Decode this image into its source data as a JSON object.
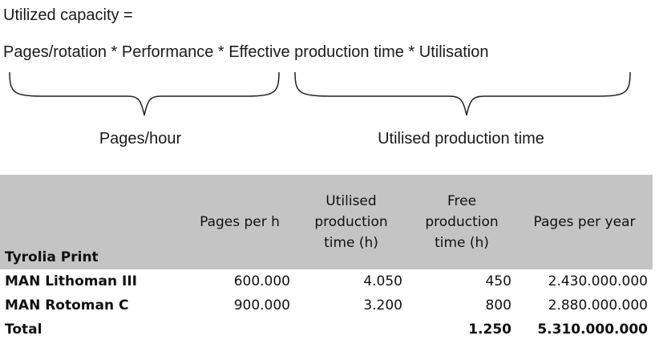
{
  "formula": {
    "title": "Utilized capacity =",
    "equation": "Pages/rotation * Performance * Effective production time * Utilisation",
    "brace_left_label": "Pages/hour",
    "brace_right_label": "Utilised production time"
  },
  "table": {
    "headers": [
      "Tyrolia Print",
      "Pages per h",
      "Utilised production time (h)",
      "Free production time (h)",
      "Pages per year"
    ],
    "rows": [
      [
        "MAN Lithoman III",
        "600.000",
        "4.050",
        "450",
        "2.430.000.000"
      ],
      [
        "MAN Rotoman C",
        "900.000",
        "3.200",
        "800",
        "2.880.000.000"
      ]
    ],
    "total": [
      "Total",
      "",
      "",
      "1.250",
      "5.310.000.000"
    ]
  },
  "colors": {
    "header_bg": "#c4c4c4",
    "text": "#111111"
  }
}
